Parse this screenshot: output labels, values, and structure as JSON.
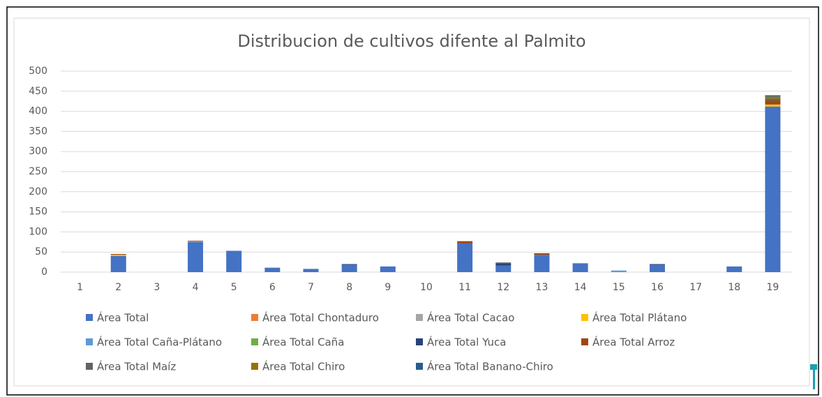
{
  "chart_data": {
    "type": "bar",
    "stacked": true,
    "title": "Distribucion de cultivos difente al Palmito",
    "categories": [
      1,
      2,
      3,
      4,
      5,
      6,
      7,
      8,
      9,
      10,
      11,
      12,
      13,
      14,
      15,
      16,
      17,
      18,
      19
    ],
    "ylim": [
      0,
      500
    ],
    "yticks": [
      0,
      50,
      100,
      150,
      200,
      250,
      300,
      350,
      400,
      450,
      500
    ],
    "grid": true,
    "legend": "bottom",
    "series": [
      {
        "name": "Área Total",
        "color": "#4472c4",
        "values": [
          0,
          40,
          0,
          75,
          53,
          11,
          8,
          18,
          14,
          0,
          72,
          16,
          43,
          22,
          0,
          18,
          0,
          14,
          412
        ]
      },
      {
        "name": "Área Total Chontaduro",
        "color": "#ed7d31",
        "values": [
          0,
          0,
          0,
          0,
          0,
          0,
          0,
          0,
          0,
          0,
          0,
          0,
          0,
          0,
          0,
          0,
          0,
          0,
          0
        ]
      },
      {
        "name": "Área Total Cacao",
        "color": "#a5a5a5",
        "values": [
          0,
          0,
          0,
          0,
          0,
          0,
          0,
          0,
          0,
          0,
          0,
          0,
          0,
          0,
          0,
          0,
          0,
          0,
          0
        ]
      },
      {
        "name": "Área Total Plátano",
        "color": "#ffc000",
        "values": [
          0,
          3,
          0,
          1,
          0,
          0,
          0,
          0,
          0,
          0,
          0,
          0,
          0,
          0,
          0,
          0,
          0,
          0,
          5
        ]
      },
      {
        "name": "Área Total Caña-Plátano",
        "color": "#5b9bd5",
        "values": [
          0,
          0,
          0,
          0,
          0,
          0,
          0,
          0,
          0,
          0,
          0,
          0,
          0,
          0,
          4,
          0,
          0,
          0,
          0
        ]
      },
      {
        "name": "Área Total Caña",
        "color": "#70ad47",
        "values": [
          0,
          0,
          0,
          0,
          0,
          0,
          0,
          0,
          0,
          0,
          0,
          0,
          0,
          0,
          0,
          0,
          0,
          0,
          0
        ]
      },
      {
        "name": "Área Total Yuca",
        "color": "#264478",
        "values": [
          0,
          0,
          0,
          0,
          0,
          0,
          0,
          2,
          0,
          0,
          0,
          6,
          0,
          0,
          0,
          2,
          0,
          0,
          0
        ]
      },
      {
        "name": "Área Total Arroz",
        "color": "#9e480e",
        "values": [
          0,
          2,
          0,
          2,
          0,
          0,
          0,
          0,
          0,
          0,
          5,
          0,
          4,
          0,
          0,
          0,
          0,
          0,
          10
        ]
      },
      {
        "name": "Área Total Maíz",
        "color": "#636363",
        "values": [
          0,
          0,
          0,
          0,
          0,
          0,
          0,
          0,
          0,
          0,
          0,
          2,
          0,
          0,
          0,
          0,
          0,
          0,
          5
        ]
      },
      {
        "name": "Área Total Chiro",
        "color": "#997300",
        "values": [
          0,
          0,
          0,
          0,
          0,
          0,
          0,
          0,
          0,
          0,
          0,
          0,
          0,
          0,
          0,
          0,
          0,
          0,
          5
        ]
      },
      {
        "name": "Área Total Banano-Chiro",
        "color": "#255e91",
        "values": [
          0,
          0,
          0,
          0,
          0,
          0,
          0,
          0,
          0,
          0,
          0,
          0,
          0,
          0,
          0,
          0,
          0,
          0,
          3
        ]
      }
    ]
  }
}
